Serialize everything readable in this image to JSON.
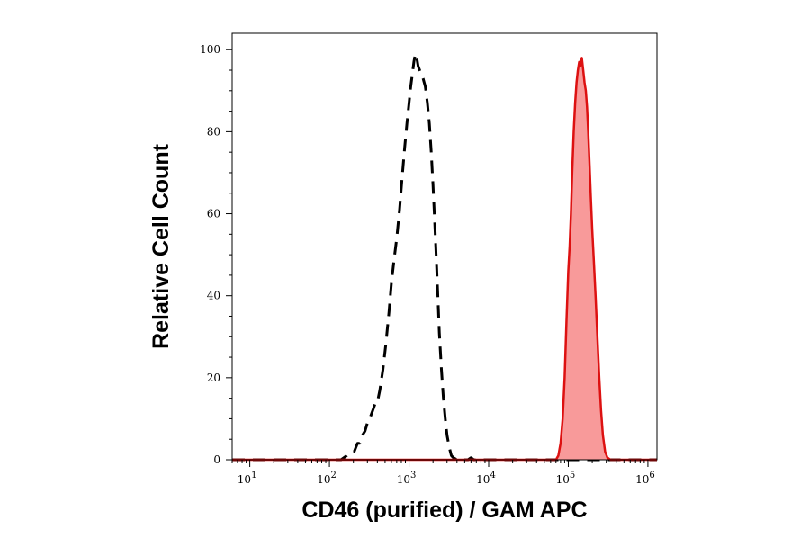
{
  "chart_data": {
    "type": "area",
    "title": "",
    "xlabel": "CD46 (purified) / GAM APC",
    "ylabel": "Relative Cell Count",
    "x_scale": "log",
    "xlim": [
      6,
      1300000
    ],
    "ylim": [
      0,
      104
    ],
    "y_ticks": [
      0,
      20,
      40,
      60,
      80,
      100
    ],
    "x_ticks": [
      {
        "value": 10,
        "base": "10",
        "exp": "1"
      },
      {
        "value": 100,
        "base": "10",
        "exp": "2"
      },
      {
        "value": 1000,
        "base": "10",
        "exp": "3"
      },
      {
        "value": 10000,
        "base": "10",
        "exp": "4"
      },
      {
        "value": 100000,
        "base": "10",
        "exp": "5"
      },
      {
        "value": 1000000,
        "base": "10",
        "exp": "6"
      }
    ],
    "grid": false,
    "legend": "none",
    "series": [
      {
        "style": "dashed",
        "color": "#000000",
        "fill": "none",
        "points": [
          [
            6,
            0
          ],
          [
            140,
            0
          ],
          [
            165,
            1
          ],
          [
            185,
            2
          ],
          [
            205,
            2
          ],
          [
            225,
            4
          ],
          [
            240,
            4
          ],
          [
            260,
            6
          ],
          [
            280,
            7
          ],
          [
            300,
            9
          ],
          [
            320,
            10
          ],
          [
            350,
            12
          ],
          [
            380,
            14
          ],
          [
            400,
            14
          ],
          [
            430,
            17
          ],
          [
            470,
            22
          ],
          [
            510,
            28
          ],
          [
            560,
            36
          ],
          [
            600,
            43
          ],
          [
            650,
            49
          ],
          [
            700,
            54
          ],
          [
            760,
            61
          ],
          [
            820,
            69
          ],
          [
            880,
            76
          ],
          [
            940,
            82
          ],
          [
            1000,
            87
          ],
          [
            1050,
            91
          ],
          [
            1100,
            94
          ],
          [
            1150,
            97
          ],
          [
            1200,
            99
          ],
          [
            1250,
            98
          ],
          [
            1300,
            96
          ],
          [
            1360,
            95
          ],
          [
            1420,
            94
          ],
          [
            1500,
            93
          ],
          [
            1600,
            91
          ],
          [
            1700,
            87
          ],
          [
            1800,
            82
          ],
          [
            1900,
            75
          ],
          [
            2000,
            67
          ],
          [
            2100,
            58
          ],
          [
            2200,
            49
          ],
          [
            2300,
            40
          ],
          [
            2400,
            31
          ],
          [
            2550,
            22
          ],
          [
            2700,
            15
          ],
          [
            2850,
            10
          ],
          [
            3000,
            6
          ],
          [
            3200,
            3
          ],
          [
            3400,
            1
          ],
          [
            3600,
            0.5
          ],
          [
            4000,
            0
          ],
          [
            5500,
            0
          ],
          [
            6000,
            0.5
          ],
          [
            6500,
            0
          ],
          [
            1300000,
            0
          ]
        ]
      },
      {
        "style": "solid",
        "color": "#dd1111",
        "fill": "#f89a9a",
        "points": [
          [
            6,
            0
          ],
          [
            70000,
            0
          ],
          [
            75000,
            1
          ],
          [
            80000,
            4
          ],
          [
            85000,
            10
          ],
          [
            90000,
            20
          ],
          [
            95000,
            34
          ],
          [
            100000,
            46
          ],
          [
            104000,
            52
          ],
          [
            108000,
            60
          ],
          [
            112000,
            70
          ],
          [
            117000,
            80
          ],
          [
            122000,
            87
          ],
          [
            127000,
            92
          ],
          [
            132000,
            95
          ],
          [
            137000,
            97
          ],
          [
            142000,
            96
          ],
          [
            148000,
            98
          ],
          [
            154000,
            95
          ],
          [
            160000,
            92
          ],
          [
            166000,
            90
          ],
          [
            172000,
            86
          ],
          [
            178000,
            80
          ],
          [
            185000,
            72
          ],
          [
            192000,
            64
          ],
          [
            200000,
            56
          ],
          [
            210000,
            48
          ],
          [
            220000,
            40
          ],
          [
            232000,
            30
          ],
          [
            245000,
            20
          ],
          [
            258000,
            12
          ],
          [
            272000,
            6
          ],
          [
            290000,
            2
          ],
          [
            310000,
            0.5
          ],
          [
            340000,
            0
          ],
          [
            1300000,
            0
          ]
        ]
      }
    ]
  }
}
